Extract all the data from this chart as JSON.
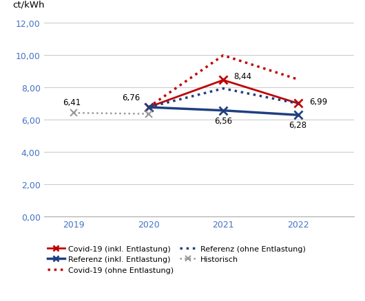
{
  "years": [
    2019,
    2020,
    2021,
    2022
  ],
  "covid_inkl": {
    "x": [
      2020,
      2021,
      2022
    ],
    "y": [
      6.76,
      8.44,
      7.0
    ]
  },
  "covid_ohne": {
    "x": [
      2020,
      2021,
      2022
    ],
    "y": [
      6.76,
      9.97,
      8.48
    ]
  },
  "referenz_inkl": {
    "x": [
      2020,
      2021,
      2022
    ],
    "y": [
      6.76,
      6.56,
      6.28
    ]
  },
  "referenz_ohne": {
    "x": [
      2020,
      2021,
      2022
    ],
    "y": [
      6.76,
      7.92,
      6.99
    ]
  },
  "historisch": {
    "x": [
      2019,
      2020
    ],
    "y": [
      6.41,
      6.35
    ]
  },
  "color_red": "#C00000",
  "color_blue": "#1F3F7F",
  "color_gray": "#999999",
  "color_tick": "#4472C4",
  "ylabel": "ct/kWh",
  "ylim": [
    0,
    12.5
  ],
  "yticks": [
    0.0,
    2.0,
    4.0,
    6.0,
    8.0,
    10.0,
    12.0
  ],
  "ytick_labels": [
    "0,00",
    "2,00",
    "4,00",
    "6,00",
    "8,00",
    "10,00",
    "12,00"
  ],
  "xticks": [
    2019,
    2020,
    2021,
    2022
  ],
  "legend": [
    "Covid-19 (inkl. Entlastung)",
    "Referenz (inkl. Entlastung)",
    "Covid-19 (ohne Entlastung)",
    "Referenz (ohne Entlastung)",
    "Historisch"
  ]
}
